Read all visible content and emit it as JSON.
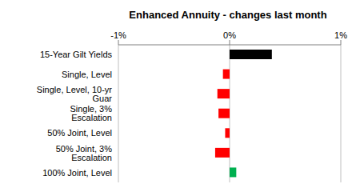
{
  "chart_data": {
    "type": "bar",
    "title": "Enhanced Annuity - changes last month",
    "orientation": "horizontal",
    "categories": [
      "15-Year Gilt Yields",
      "Single, Level",
      "Single, Level, 10-yr Guar",
      "Single, 3% Escalation",
      "50% Joint, Level",
      "50% Joint, 3% Escalation",
      "100% Joint, Level"
    ],
    "values": [
      0.38,
      -0.06,
      -0.11,
      -0.1,
      -0.04,
      -0.13,
      0.06
    ],
    "colors": [
      "#000000",
      "#ff0000",
      "#ff0000",
      "#ff0000",
      "#ff0000",
      "#ff0000",
      "#00b050"
    ],
    "xlim": [
      -1,
      1
    ],
    "xticks": [
      {
        "value": -1,
        "label": "-1%"
      },
      {
        "value": 0,
        "label": "0%"
      },
      {
        "value": 1,
        "label": "1%"
      }
    ],
    "grid": true
  }
}
